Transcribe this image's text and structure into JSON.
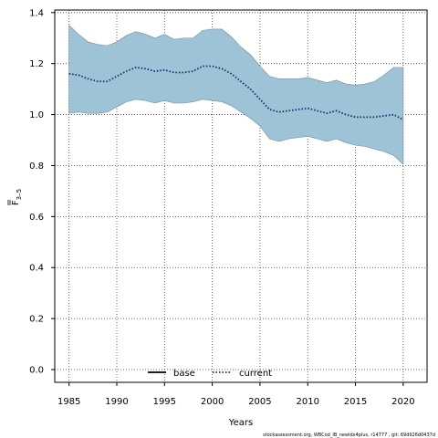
{
  "chart_data": {
    "type": "line",
    "title": "",
    "xlabel": "Years",
    "ylabel_main": "F",
    "ylabel_sub": "3–5",
    "xlim": [
      1983.5,
      2022.5
    ],
    "ylim": [
      -0.05,
      1.41
    ],
    "xticks": [
      1985,
      1990,
      1995,
      2000,
      2005,
      2010,
      2015,
      2020
    ],
    "yticks": [
      "0.0",
      "0.2",
      "0.4",
      "0.6",
      "0.8",
      "1.0",
      "1.2",
      "1.4"
    ],
    "grid": true,
    "legend_placement": "bottom-center",
    "legend": [
      {
        "label": "base",
        "style": "solid",
        "color": "#000000"
      },
      {
        "label": "current",
        "style": "dotted",
        "color": "#08306b"
      }
    ],
    "band_color": "#9fc3d6",
    "x": [
      1985,
      1986,
      1987,
      1988,
      1989,
      1990,
      1991,
      1992,
      1993,
      1994,
      1995,
      1996,
      1997,
      1998,
      1999,
      2000,
      2001,
      2002,
      2003,
      2004,
      2005,
      2006,
      2007,
      2008,
      2009,
      2010,
      2011,
      2012,
      2013,
      2014,
      2015,
      2016,
      2017,
      2018,
      2019,
      2020
    ],
    "series": [
      {
        "name": "current",
        "values": [
          1.16,
          1.155,
          1.14,
          1.13,
          1.13,
          1.15,
          1.17,
          1.185,
          1.18,
          1.17,
          1.175,
          1.165,
          1.165,
          1.17,
          1.19,
          1.19,
          1.18,
          1.16,
          1.13,
          1.1,
          1.06,
          1.02,
          1.01,
          1.015,
          1.02,
          1.025,
          1.015,
          1.005,
          1.015,
          1.0,
          0.99,
          0.99,
          0.99,
          0.995,
          1.0,
          0.98
        ],
        "lower": [
          1.005,
          1.01,
          1.005,
          1.005,
          1.01,
          1.03,
          1.05,
          1.06,
          1.055,
          1.045,
          1.055,
          1.045,
          1.045,
          1.05,
          1.06,
          1.055,
          1.05,
          1.035,
          1.01,
          0.985,
          0.955,
          0.905,
          0.895,
          0.905,
          0.91,
          0.915,
          0.905,
          0.895,
          0.905,
          0.89,
          0.88,
          0.875,
          0.865,
          0.855,
          0.84,
          0.805
        ],
        "upper": [
          1.35,
          1.315,
          1.285,
          1.275,
          1.27,
          1.285,
          1.31,
          1.325,
          1.315,
          1.3,
          1.315,
          1.295,
          1.3,
          1.3,
          1.33,
          1.335,
          1.335,
          1.305,
          1.265,
          1.235,
          1.19,
          1.15,
          1.14,
          1.14,
          1.14,
          1.145,
          1.135,
          1.125,
          1.135,
          1.12,
          1.115,
          1.12,
          1.13,
          1.155,
          1.185,
          1.185
        ]
      }
    ]
  },
  "footnote": "stockassessment.org, WBCod_IB_newidx4plus, r14777 , git: 69d926d0437d"
}
